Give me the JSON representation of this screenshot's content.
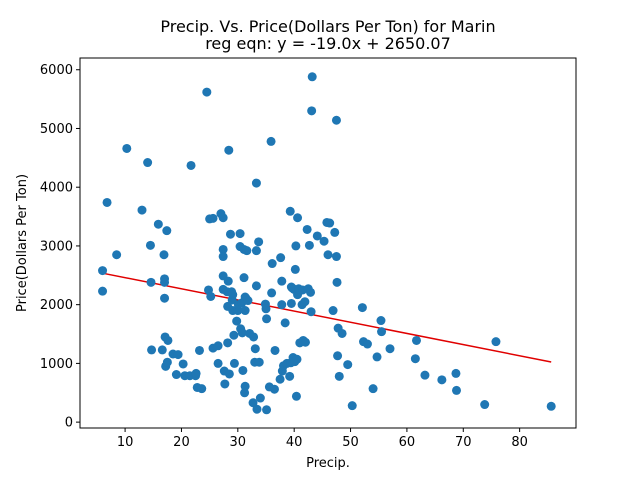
{
  "chart_data": {
    "type": "scatter",
    "title": "Precip. Vs. Price(Dollars Per Ton) for Marin",
    "subtitle": "reg eqn: y = -19.0x + 2650.07",
    "xlabel": "Precip.",
    "ylabel": "Price(Dollars Per Ton)",
    "xlim": [
      2,
      90
    ],
    "ylim": [
      -100,
      6200
    ],
    "xticks": [
      10,
      20,
      30,
      40,
      50,
      60,
      70,
      80
    ],
    "yticks": [
      0,
      1000,
      2000,
      3000,
      4000,
      5000,
      6000
    ],
    "grid": false,
    "colors": {
      "points": "#1f77b4",
      "regression": "#e00000"
    },
    "regression": {
      "slope": -19.0,
      "intercept": 2650.07,
      "x_range": [
        6.0,
        85.6
      ]
    },
    "points": [
      [
        6.0,
        2580
      ],
      [
        6.0,
        2230
      ],
      [
        6.8,
        3740
      ],
      [
        8.5,
        2850
      ],
      [
        10.3,
        4660
      ],
      [
        13.0,
        3610
      ],
      [
        14.0,
        4420
      ],
      [
        14.5,
        3010
      ],
      [
        14.6,
        2380
      ],
      [
        14.7,
        1230
      ],
      [
        15.9,
        3370
      ],
      [
        16.6,
        1230
      ],
      [
        16.9,
        2850
      ],
      [
        17.0,
        2440
      ],
      [
        17.0,
        2380
      ],
      [
        17.0,
        2110
      ],
      [
        17.1,
        1450
      ],
      [
        17.4,
        3260
      ],
      [
        17.2,
        950
      ],
      [
        17.6,
        1390
      ],
      [
        17.5,
        1020
      ],
      [
        18.5,
        1160
      ],
      [
        19.4,
        1150
      ],
      [
        19.1,
        810
      ],
      [
        20.3,
        990
      ],
      [
        20.6,
        790
      ],
      [
        21.5,
        790
      ],
      [
        21.7,
        4370
      ],
      [
        22.5,
        790
      ],
      [
        22.6,
        830
      ],
      [
        22.8,
        590
      ],
      [
        23.2,
        1220
      ],
      [
        23.6,
        570
      ],
      [
        24.5,
        5620
      ],
      [
        24.8,
        2250
      ],
      [
        25.0,
        3460
      ],
      [
        25.2,
        2140
      ],
      [
        25.6,
        3470
      ],
      [
        25.6,
        1260
      ],
      [
        26.5,
        1300
      ],
      [
        26.5,
        1000
      ],
      [
        27.0,
        3550
      ],
      [
        27.4,
        3480
      ],
      [
        27.4,
        2940
      ],
      [
        27.4,
        2820
      ],
      [
        27.4,
        2490
      ],
      [
        27.4,
        2260
      ],
      [
        27.6,
        870
      ],
      [
        27.7,
        650
      ],
      [
        28.1,
        2220
      ],
      [
        28.2,
        1970
      ],
      [
        28.2,
        1350
      ],
      [
        28.3,
        2400
      ],
      [
        28.4,
        4630
      ],
      [
        28.5,
        820
      ],
      [
        28.7,
        3200
      ],
      [
        28.9,
        2220
      ],
      [
        29.0,
        2080
      ],
      [
        29.1,
        1900
      ],
      [
        29.1,
        2170
      ],
      [
        29.3,
        1480
      ],
      [
        29.4,
        1000
      ],
      [
        29.8,
        1720
      ],
      [
        30.0,
        1900
      ],
      [
        30.1,
        2000
      ],
      [
        30.4,
        3210
      ],
      [
        30.4,
        2990
      ],
      [
        30.5,
        1590
      ],
      [
        30.7,
        2030
      ],
      [
        30.8,
        1520
      ],
      [
        30.9,
        880
      ],
      [
        31.1,
        2460
      ],
      [
        31.1,
        2940
      ],
      [
        31.2,
        500
      ],
      [
        31.3,
        610
      ],
      [
        31.3,
        1900
      ],
      [
        31.3,
        2130
      ],
      [
        31.5,
        2100
      ],
      [
        31.6,
        2920
      ],
      [
        31.8,
        2070
      ],
      [
        32.1,
        1510
      ],
      [
        32.7,
        330
      ],
      [
        32.8,
        1450
      ],
      [
        33.0,
        1020
      ],
      [
        33.1,
        1250
      ],
      [
        33.3,
        4070
      ],
      [
        33.3,
        2920
      ],
      [
        33.3,
        2320
      ],
      [
        33.4,
        220
      ],
      [
        33.7,
        3070
      ],
      [
        33.8,
        1020
      ],
      [
        34.0,
        410
      ],
      [
        34.9,
        2010
      ],
      [
        35.0,
        1930
      ],
      [
        35.1,
        1760
      ],
      [
        35.1,
        210
      ],
      [
        35.6,
        600
      ],
      [
        35.9,
        4780
      ],
      [
        36.0,
        2200
      ],
      [
        36.1,
        2700
      ],
      [
        36.5,
        560
      ],
      [
        36.6,
        1220
      ],
      [
        37.5,
        730
      ],
      [
        37.6,
        2800
      ],
      [
        37.8,
        2400
      ],
      [
        37.8,
        2000
      ],
      [
        37.9,
        870
      ],
      [
        38.1,
        960
      ],
      [
        38.4,
        1690
      ],
      [
        38.7,
        1000
      ],
      [
        39.2,
        780
      ],
      [
        39.3,
        3590
      ],
      [
        39.4,
        1010
      ],
      [
        39.5,
        2300
      ],
      [
        39.5,
        2020
      ],
      [
        39.7,
        2280
      ],
      [
        39.8,
        1100
      ],
      [
        40.0,
        2260
      ],
      [
        40.1,
        1030
      ],
      [
        40.2,
        2600
      ],
      [
        40.3,
        3000
      ],
      [
        40.4,
        440
      ],
      [
        40.5,
        1070
      ],
      [
        40.6,
        3480
      ],
      [
        40.6,
        2170
      ],
      [
        40.8,
        2270
      ],
      [
        41.0,
        1350
      ],
      [
        41.4,
        2000
      ],
      [
        41.5,
        2250
      ],
      [
        41.6,
        1390
      ],
      [
        41.9,
        2050
      ],
      [
        42.0,
        1360
      ],
      [
        42.3,
        3280
      ],
      [
        42.5,
        2270
      ],
      [
        42.7,
        3010
      ],
      [
        42.9,
        2210
      ],
      [
        43.0,
        1880
      ],
      [
        43.1,
        5300
      ],
      [
        43.2,
        5880
      ],
      [
        44.1,
        3170
      ],
      [
        45.3,
        3080
      ],
      [
        45.8,
        3400
      ],
      [
        46.0,
        2850
      ],
      [
        46.3,
        3390
      ],
      [
        46.9,
        1900
      ],
      [
        47.2,
        3230
      ],
      [
        47.5,
        2820
      ],
      [
        47.5,
        5140
      ],
      [
        47.6,
        2380
      ],
      [
        47.7,
        1130
      ],
      [
        47.8,
        1600
      ],
      [
        48.0,
        780
      ],
      [
        48.5,
        1510
      ],
      [
        49.5,
        980
      ],
      [
        50.3,
        280
      ],
      [
        52.1,
        1950
      ],
      [
        52.3,
        1370
      ],
      [
        53.0,
        1330
      ],
      [
        54.0,
        570
      ],
      [
        54.7,
        1110
      ],
      [
        55.4,
        1730
      ],
      [
        55.5,
        1540
      ],
      [
        57.0,
        1250
      ],
      [
        61.5,
        1080
      ],
      [
        61.7,
        1390
      ],
      [
        63.2,
        800
      ],
      [
        66.2,
        720
      ],
      [
        68.7,
        830
      ],
      [
        68.8,
        540
      ],
      [
        73.8,
        300
      ],
      [
        75.8,
        1370
      ],
      [
        85.6,
        270
      ]
    ]
  }
}
